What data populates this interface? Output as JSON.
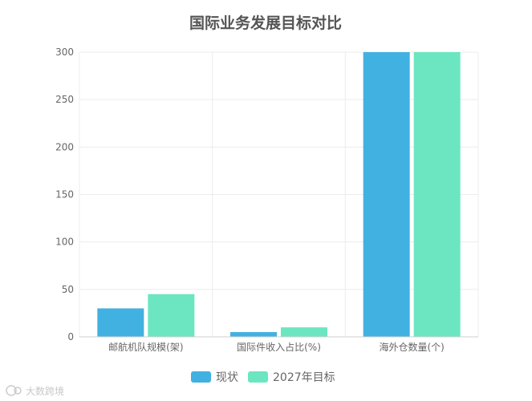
{
  "chart_data": {
    "type": "bar",
    "title": "国际业务发展目标对比",
    "categories": [
      "邮航机队规模(架)",
      "国际件收入占比(%)",
      "海外仓数量(个)"
    ],
    "series": [
      {
        "name": "现状",
        "values": [
          30,
          5,
          300
        ],
        "color": "#41b1e1"
      },
      {
        "name": "2027年目标",
        "values": [
          45,
          10,
          300
        ],
        "color": "#6be6c1"
      }
    ],
    "ylim": [
      0,
      300
    ],
    "yticks": [
      0,
      50,
      100,
      150,
      200,
      250,
      300
    ],
    "grid": true,
    "legend_position": "bottom-center"
  },
  "watermark": {
    "text": "大数跨境",
    "icon": "logo-icon"
  }
}
